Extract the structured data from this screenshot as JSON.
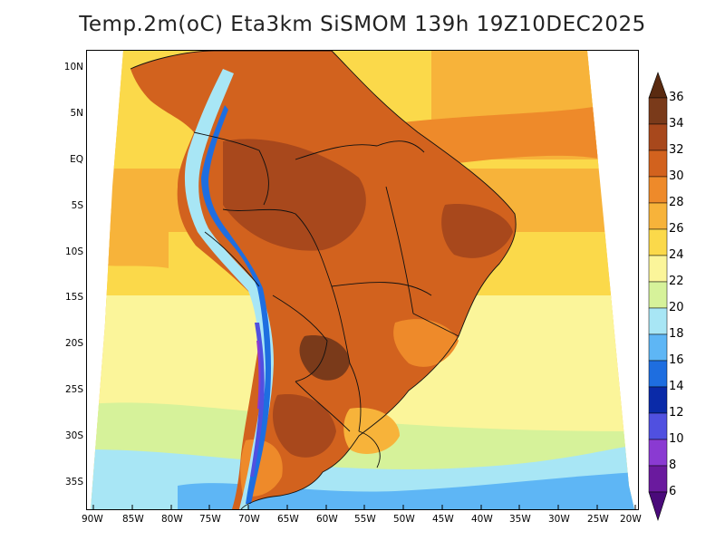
{
  "title": "Temp.2m(oC) Eta3km SiSMOM 139h 19Z10DEC2025",
  "map": {
    "lat_labels": [
      "10N",
      "5N",
      "EQ",
      "5S",
      "10S",
      "15S",
      "20S",
      "25S",
      "30S",
      "35S"
    ],
    "lon_labels": [
      "90W",
      "85W",
      "80W",
      "75W",
      "70W",
      "65W",
      "60W",
      "55W",
      "50W",
      "45W",
      "40W",
      "35W",
      "30W",
      "25W",
      "20W"
    ]
  },
  "colorbar": {
    "labels": [
      "36",
      "34",
      "32",
      "30",
      "28",
      "26",
      "24",
      "22",
      "20",
      "18",
      "16",
      "14",
      "12",
      "10",
      "8",
      "6"
    ],
    "colors": {
      "top_arrow": "#5a2a10",
      "c34_36": "#7a3a1a",
      "c32_34": "#a8481c",
      "c30_32": "#d2621e",
      "c28_30": "#ee8a2a",
      "c26_28": "#f7b33a",
      "c24_26": "#fbd94a",
      "c22_24": "#fbf59a",
      "c20_22": "#d6f29a",
      "c18_20": "#a8e6f5",
      "c16_18": "#5eb6f5",
      "c14_16": "#1e6ee0",
      "c12_14": "#0a2aa8",
      "c10_12": "#5050e0",
      "c8_10": "#8a3ad2",
      "c6_8": "#6a1a9e",
      "bottom_arrow": "#4a0a7a"
    }
  }
}
